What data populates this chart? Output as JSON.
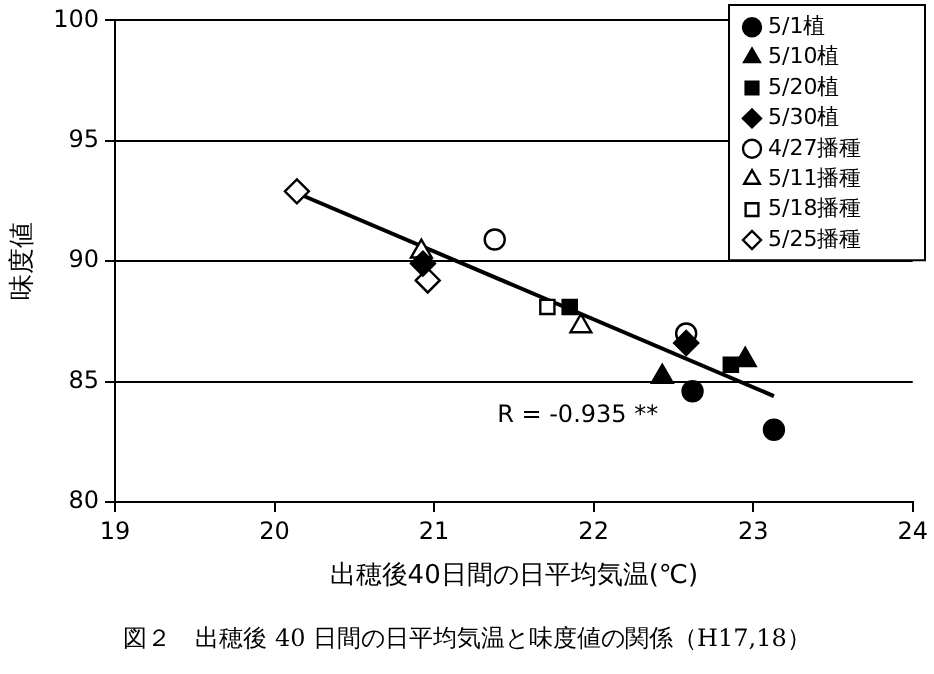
{
  "chart_data": {
    "type": "scatter",
    "xlabel": "出穂後40日間の日平均気温(℃)",
    "ylabel": "味度値",
    "xlim": [
      19,
      24
    ],
    "xticks": [
      19,
      20,
      21,
      22,
      23,
      24
    ],
    "ylim": [
      80,
      100
    ],
    "yticks": [
      80,
      85,
      90,
      95,
      100
    ],
    "grid": "y",
    "legend": "top right",
    "annotations": [
      "R = -0.935 **",
      "図２　出穂後 40 日間の日平均気温と味度値の関係（H17,18）"
    ],
    "series": [
      {
        "name": "5/1植",
        "color": "#000000",
        "marker": "circle",
        "x": [
          22.62,
          23.13
        ],
        "values": [
          84.6,
          83.0
        ]
      },
      {
        "name": "5/10植",
        "color": "#000000",
        "marker": "triangle",
        "x": [
          22.43,
          22.95
        ],
        "values": [
          85.2,
          85.9
        ]
      },
      {
        "name": "5/20植",
        "color": "#000000",
        "marker": "square",
        "x": [
          21.85,
          22.86
        ],
        "values": [
          88.1,
          85.7
        ]
      },
      {
        "name": "5/30植",
        "color": "#000000",
        "marker": "diamond",
        "x": [
          20.93,
          22.58
        ],
        "values": [
          89.9,
          86.6
        ]
      },
      {
        "name": "4/27播種",
        "color": "#ffffff",
        "marker": "circle",
        "x": [
          21.38,
          22.58
        ],
        "values": [
          90.9,
          87.0
        ]
      },
      {
        "name": "5/11播種",
        "color": "#ffffff",
        "marker": "triangle",
        "x": [
          20.92,
          21.92
        ],
        "values": [
          90.4,
          87.3
        ]
      },
      {
        "name": "5/18播種",
        "color": "#ffffff",
        "marker": "square",
        "x": [
          21.71
        ],
        "values": [
          88.1
        ]
      },
      {
        "name": "5/25播種",
        "color": "#ffffff",
        "marker": "diamond",
        "x": [
          20.14,
          20.96
        ],
        "values": [
          92.9,
          89.2
        ]
      },
      {
        "type": "line",
        "color": "#000000",
        "marker": "none",
        "x": [
          20.15,
          23.13
        ],
        "values": [
          92.8,
          84.4
        ]
      }
    ]
  }
}
